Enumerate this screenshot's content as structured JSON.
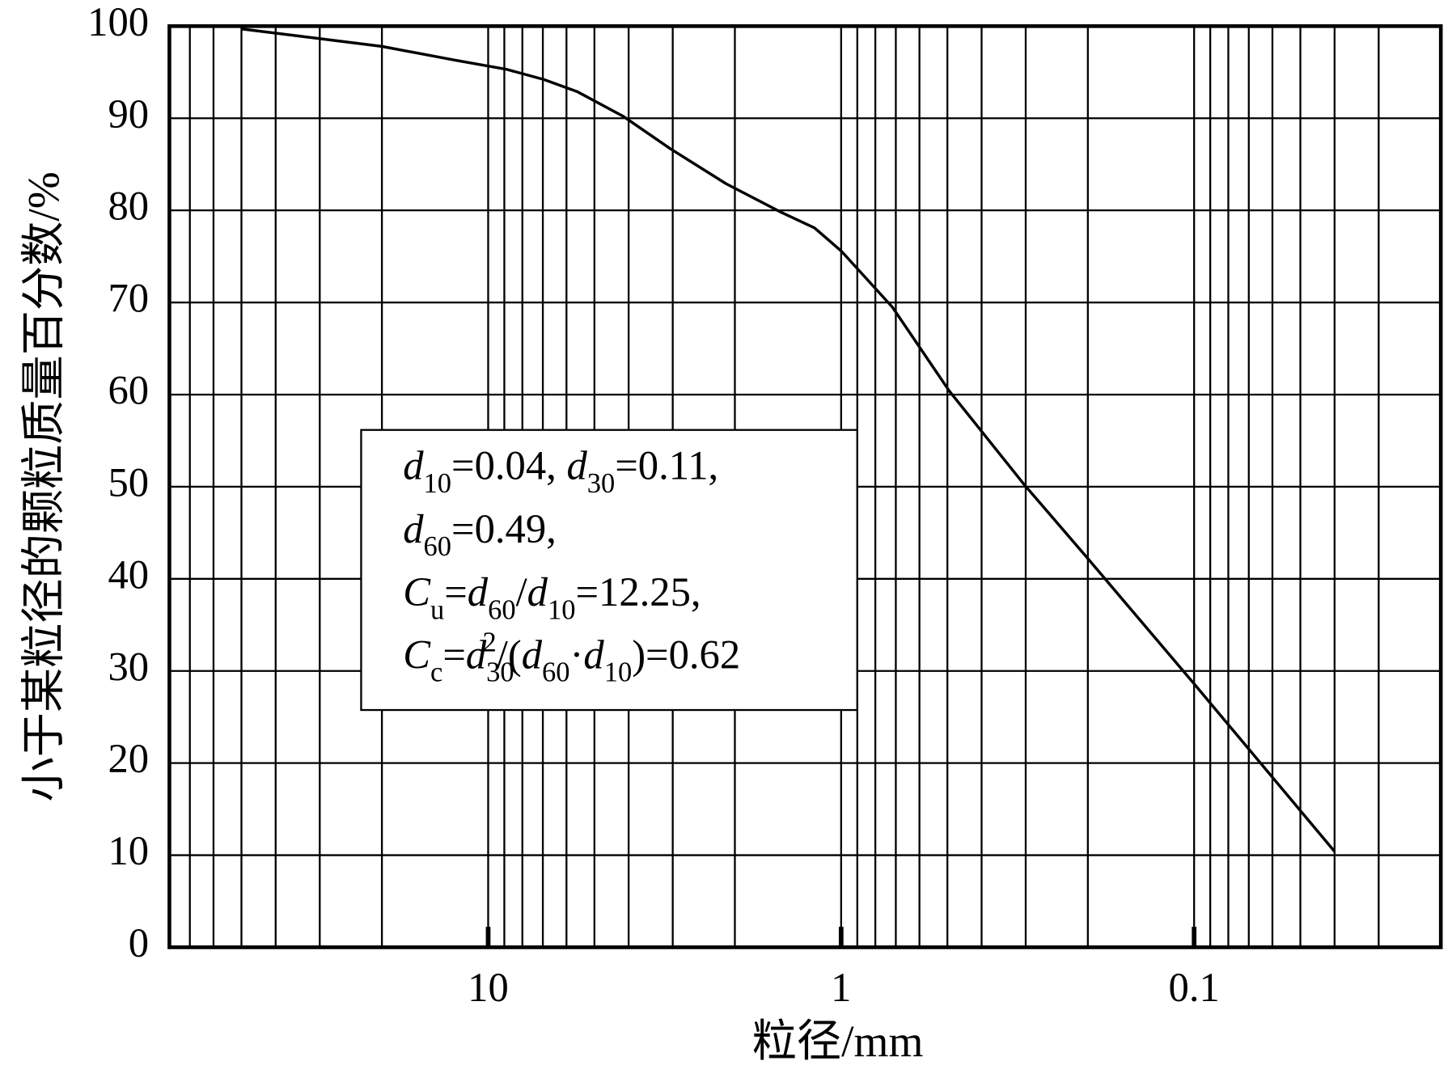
{
  "chart_data": {
    "type": "line",
    "x_label": "粒径/mm",
    "y_label": "小于某粒径的颗粒质量百分数/%",
    "xscale": "log",
    "xlim": [
      80,
      0.02
    ],
    "xticks": [
      10,
      1,
      0.1
    ],
    "ylim": [
      0,
      100
    ],
    "yticks": [
      0,
      10,
      20,
      30,
      40,
      50,
      60,
      70,
      80,
      90,
      100
    ],
    "grid": true,
    "color": "#000000",
    "x": [
      50,
      20,
      12.4,
      8.85,
      6.95,
      5.6,
      4.14,
      3.05,
      2.12,
      1.48,
      1.19,
      1,
      0.716,
      0.494,
      0.304,
      0.2,
      0.1,
      0.04
    ],
    "values": [
      99.7,
      97.8,
      96.3,
      95.3,
      94.2,
      92.9,
      90.2,
      86.7,
      82.9,
      79.8,
      78.1,
      75.6,
      69.5,
      60.4,
      50.3,
      42.2,
      28.6,
      10.4
    ],
    "annotation": {
      "lines": [
        [
          {
            "text": "d",
            "style": "italic"
          },
          {
            "text": "10",
            "style": "sub"
          },
          {
            "text": "=0.04, ",
            "style": "normal"
          },
          {
            "text": "d",
            "style": "italic"
          },
          {
            "text": "30",
            "style": "sub"
          },
          {
            "text": "=0.11,",
            "style": "normal"
          }
        ],
        [
          {
            "text": "d",
            "style": "italic"
          },
          {
            "text": "60",
            "style": "sub"
          },
          {
            "text": "=0.49,",
            "style": "normal"
          }
        ],
        [
          {
            "text": "C",
            "style": "italic"
          },
          {
            "text": "u",
            "style": "sub"
          },
          {
            "text": "=",
            "style": "normal"
          },
          {
            "text": "d",
            "style": "italic"
          },
          {
            "text": "60",
            "style": "sub"
          },
          {
            "text": "/",
            "style": "normal"
          },
          {
            "text": "d",
            "style": "italic"
          },
          {
            "text": "10",
            "style": "sub"
          },
          {
            "text": "=12.25,",
            "style": "normal"
          }
        ],
        [
          {
            "text": "C",
            "style": "italic"
          },
          {
            "text": "c",
            "style": "sub"
          },
          {
            "text": "=",
            "style": "normal"
          },
          {
            "text": "d",
            "style": "italic"
          },
          {
            "text": "30",
            "style": "sub"
          },
          {
            "text": "2",
            "style": "sup"
          },
          {
            "text": "/(",
            "style": "normal"
          },
          {
            "text": "d",
            "style": "italic"
          },
          {
            "text": "60",
            "style": "sub"
          },
          {
            "text": "·",
            "style": "normal"
          },
          {
            "text": "d",
            "style": "italic"
          },
          {
            "text": "10",
            "style": "sub"
          },
          {
            "text": ")=0.62",
            "style": "normal"
          }
        ]
      ]
    }
  }
}
